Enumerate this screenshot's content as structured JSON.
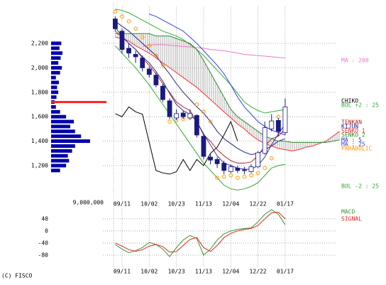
{
  "chart_data": [
    {
      "type": "candlestick",
      "source": "(C) FISCO",
      "categories": [
        null,
        "09/11",
        null,
        null,
        null,
        "10/02",
        null,
        null,
        null,
        "10/23",
        null,
        null,
        null,
        "11/13",
        null,
        null,
        null,
        "12/04",
        null,
        null,
        null,
        "12/22",
        null,
        null,
        null,
        "01/17",
        null,
        null,
        null,
        null,
        null,
        null,
        null,
        null
      ],
      "open": [
        2400,
        2300,
        2160,
        2110,
        2080,
        1990,
        1940,
        1850,
        1730,
        1590,
        1630,
        1590,
        1610,
        1440,
        1270,
        1250,
        1220,
        1150,
        1180,
        1165,
        1150,
        1190,
        1300,
        1500,
        1570,
        1470,
        null,
        null,
        null,
        null,
        null,
        null,
        null,
        null
      ],
      "high": [
        2420,
        2320,
        2200,
        2140,
        2100,
        2010,
        1960,
        1870,
        1750,
        1660,
        1650,
        1660,
        1620,
        1460,
        1300,
        1270,
        1240,
        1210,
        1200,
        1190,
        1210,
        1320,
        1560,
        1620,
        1590,
        1750,
        null,
        null,
        null,
        null,
        null,
        null,
        null,
        null
      ],
      "low": [
        2300,
        2120,
        2080,
        2040,
        1970,
        1920,
        1840,
        1720,
        1580,
        1570,
        1580,
        1580,
        1430,
        1250,
        1210,
        1180,
        1130,
        1140,
        1140,
        1130,
        1140,
        1180,
        1290,
        1480,
        1440,
        1450,
        null,
        null,
        null,
        null,
        null,
        null,
        null,
        null
      ],
      "close": [
        2320,
        2150,
        2120,
        2090,
        2000,
        1945,
        1860,
        1740,
        1600,
        1625,
        1600,
        1625,
        1450,
        1275,
        1245,
        1215,
        1160,
        1190,
        1160,
        1160,
        1190,
        1305,
        1510,
        1565,
        1480,
        1680,
        null,
        null,
        null,
        null,
        null,
        null,
        null,
        null
      ],
      "up_color": "#ffffff",
      "down_color": "#1a1a80",
      "edge_color": "#1a1a80",
      "ylim": [
        900,
        2500
      ],
      "yticks": [
        {
          "value": 1200,
          "label": "1,200"
        },
        {
          "value": 1400,
          "label": "1,400"
        },
        {
          "value": 1600,
          "label": "1,600"
        },
        {
          "value": 1800,
          "label": "1,800"
        },
        {
          "value": 2000,
          "label": "2,000"
        },
        {
          "value": 2200,
          "label": "2,200"
        }
      ],
      "grid": true,
      "cloud": {
        "series": [
          5,
          6
        ],
        "color": "#888888"
      },
      "series": [
        {
          "name": "MA : 200",
          "color": "#ee77cc",
          "values": [
            null,
            null,
            null,
            null,
            2175,
            2185,
            2190,
            2190,
            2185,
            2180,
            2175,
            2170,
            2165,
            2160,
            2150,
            2145,
            2140,
            2130,
            2120,
            2110,
            2105,
            2100,
            2095,
            2090,
            2085,
            2080,
            null,
            null,
            null,
            null,
            null,
            null,
            null,
            null
          ]
        },
        {
          "name": "BOL +2 : 25",
          "color": "#33aa33",
          "values": [
            2480,
            2470,
            2450,
            2420,
            2390,
            2360,
            2330,
            2300,
            2280,
            2260,
            2230,
            2190,
            2150,
            2100,
            2040,
            1980,
            1920,
            1860,
            1790,
            1720,
            1680,
            1650,
            1630,
            1640,
            1650,
            1660,
            null,
            null,
            null,
            null,
            null,
            null,
            null,
            null
          ]
        },
        {
          "name": "BOL -2 : 25",
          "color": "#33aa33",
          "values": [
            2180,
            2120,
            2060,
            2000,
            1930,
            1860,
            1780,
            1700,
            1620,
            1540,
            1460,
            1380,
            1300,
            1220,
            1160,
            1100,
            1040,
            1010,
            1000,
            1010,
            1030,
            1060,
            1120,
            1180,
            1200,
            1210,
            null,
            null,
            null,
            null,
            null,
            null,
            null,
            null
          ]
        },
        {
          "name": "TENKAN",
          "color": "#bb2222",
          "values": [
            2300,
            2250,
            2200,
            2150,
            2080,
            2020,
            1950,
            1870,
            1800,
            1720,
            1680,
            1650,
            1560,
            1450,
            1400,
            1330,
            1280,
            1240,
            1220,
            1220,
            1230,
            1280,
            1360,
            1420,
            1440,
            1500,
            null,
            null,
            null,
            null,
            null,
            null,
            null,
            null
          ]
        },
        {
          "name": "KIJUN",
          "color": "#222288",
          "values": [
            2380,
            2340,
            2300,
            2250,
            2200,
            2150,
            2100,
            2020,
            1950,
            1870,
            1800,
            1740,
            1680,
            1630,
            1560,
            1480,
            1420,
            1380,
            1340,
            1310,
            1290,
            1300,
            1330,
            1360,
            1400,
            1420,
            null,
            null,
            null,
            null,
            null,
            null,
            null,
            null
          ]
        },
        {
          "name": "SENKO 1",
          "color": "#ee3333",
          "values": [
            2250,
            2240,
            2220,
            2180,
            2150,
            2120,
            2080,
            2040,
            2000,
            1960,
            1920,
            1880,
            1840,
            1790,
            1740,
            1690,
            1640,
            1590,
            1540,
            1500,
            1450,
            1410,
            1380,
            1360,
            1340,
            1330,
            1320,
            1330,
            1350,
            1360,
            1380,
            1400,
            1440,
            1480
          ]
        },
        {
          "name": "SENKO 2",
          "color": "#338833",
          "values": [
            2280,
            2280,
            2280,
            2280,
            2280,
            2280,
            2260,
            2260,
            2260,
            2240,
            2220,
            2200,
            2150,
            2060,
            1960,
            1860,
            1760,
            1660,
            1600,
            1560,
            1520,
            1480,
            1440,
            1420,
            1400,
            1400,
            1390,
            1390,
            1390,
            1390,
            1390,
            1390,
            1400,
            1410
          ]
        },
        {
          "name": "MA : 5",
          "color": "#333399",
          "values": [
            2330,
            2260,
            2200,
            2150,
            2090,
            2040,
            1970,
            1890,
            1790,
            1700,
            1650,
            1620,
            1560,
            1460,
            1370,
            1280,
            1220,
            1200,
            1180,
            1170,
            1170,
            1200,
            1270,
            1370,
            1460,
            1540,
            null,
            null,
            null,
            null,
            null,
            null,
            null,
            null
          ]
        },
        {
          "name": "MA : 25",
          "color": "#3344ee",
          "values": [
            null,
            null,
            null,
            null,
            null,
            2440,
            2420,
            2390,
            2360,
            2330,
            2300,
            2250,
            2200,
            2140,
            2080,
            2020,
            1950,
            1860,
            1760,
            1680,
            1620,
            1560,
            1520,
            1490,
            1470,
            1450,
            null,
            null,
            null,
            null,
            null,
            null,
            null,
            null
          ]
        },
        {
          "name": "PARABOLIC",
          "color": "#ff9900",
          "marker": "circle",
          "values": [
            2460,
            2420,
            2380,
            2320,
            2250,
            2180,
            2100,
            2020,
            1560,
            1570,
            1580,
            1590,
            1700,
            1640,
            1560,
            1100,
            1110,
            1120,
            1100,
            1110,
            1120,
            1140,
            1180,
            1260,
            1600,
            1640,
            null,
            null,
            null,
            null,
            null,
            null,
            null,
            null
          ]
        },
        {
          "name": "CHIKO",
          "color": "#000000",
          "values": [
            1625,
            1600,
            1680,
            1640,
            1620,
            1390,
            1160,
            1140,
            1130,
            1150,
            1250,
            1160,
            1250,
            1200,
            1300,
            1350,
            1450,
            1560,
            1400,
            null,
            null,
            null,
            null,
            null,
            null,
            null,
            null,
            null,
            null,
            null,
            null,
            null,
            null,
            null
          ]
        }
      ],
      "volume_profile": {
        "color": "#0000aa",
        "highlight": 1720,
        "highlight_color": "#ff2222",
        "levels": [
          1160,
          1200,
          1240,
          1280,
          1320,
          1360,
          1400,
          1440,
          1480,
          1520,
          1560,
          1600,
          1640,
          1680,
          1720,
          1760,
          1800,
          1840,
          1880,
          1920,
          1960,
          2000,
          2040,
          2080,
          2120,
          2160,
          2200
        ],
        "values": [
          1500000,
          2500000,
          3000000,
          2800000,
          3500000,
          4000000,
          6500000,
          5000000,
          4000000,
          3200000,
          3800000,
          2500000,
          1500000,
          800000,
          600000,
          900000,
          1200000,
          1000000,
          1300000,
          800000,
          1500000,
          1800000,
          1200000,
          1600000,
          1900000,
          1400000,
          1700000
        ],
        "xlim": [
          0,
          9000000
        ],
        "xticks": [
          {
            "value": 9000000,
            "label": "9,000,000"
          }
        ]
      }
    },
    {
      "type": "line",
      "categories": [
        null,
        "09/11",
        null,
        null,
        null,
        "10/02",
        null,
        null,
        null,
        "10/23",
        null,
        null,
        null,
        "11/13",
        null,
        null,
        null,
        "12/04",
        null,
        null,
        null,
        "12/22",
        null,
        null,
        null,
        "01/17",
        null,
        null,
        null,
        null,
        null,
        null,
        null,
        null
      ],
      "ylim": [
        -120,
        75
      ],
      "yticks": [
        -80,
        -40,
        0,
        40
      ],
      "grid": true,
      "series": [
        {
          "name": "MACD",
          "color": "#339933",
          "values": [
            -45,
            -60,
            -72,
            -65,
            -55,
            -38,
            -45,
            -60,
            -85,
            -55,
            -30,
            -15,
            -25,
            -80,
            -60,
            -30,
            -10,
            0,
            5,
            8,
            10,
            30,
            55,
            70,
            55,
            20,
            null,
            null,
            null,
            null,
            null,
            null,
            null,
            null
          ]
        },
        {
          "name": "SIGNAL",
          "color": "#ee2222",
          "values": [
            -40,
            -50,
            -62,
            -67,
            -62,
            -50,
            -45,
            -52,
            -70,
            -68,
            -48,
            -28,
            -22,
            -55,
            -68,
            -48,
            -22,
            -8,
            0,
            5,
            8,
            18,
            40,
            60,
            62,
            40,
            null,
            null,
            null,
            null,
            null,
            null,
            null,
            null
          ]
        }
      ]
    }
  ]
}
